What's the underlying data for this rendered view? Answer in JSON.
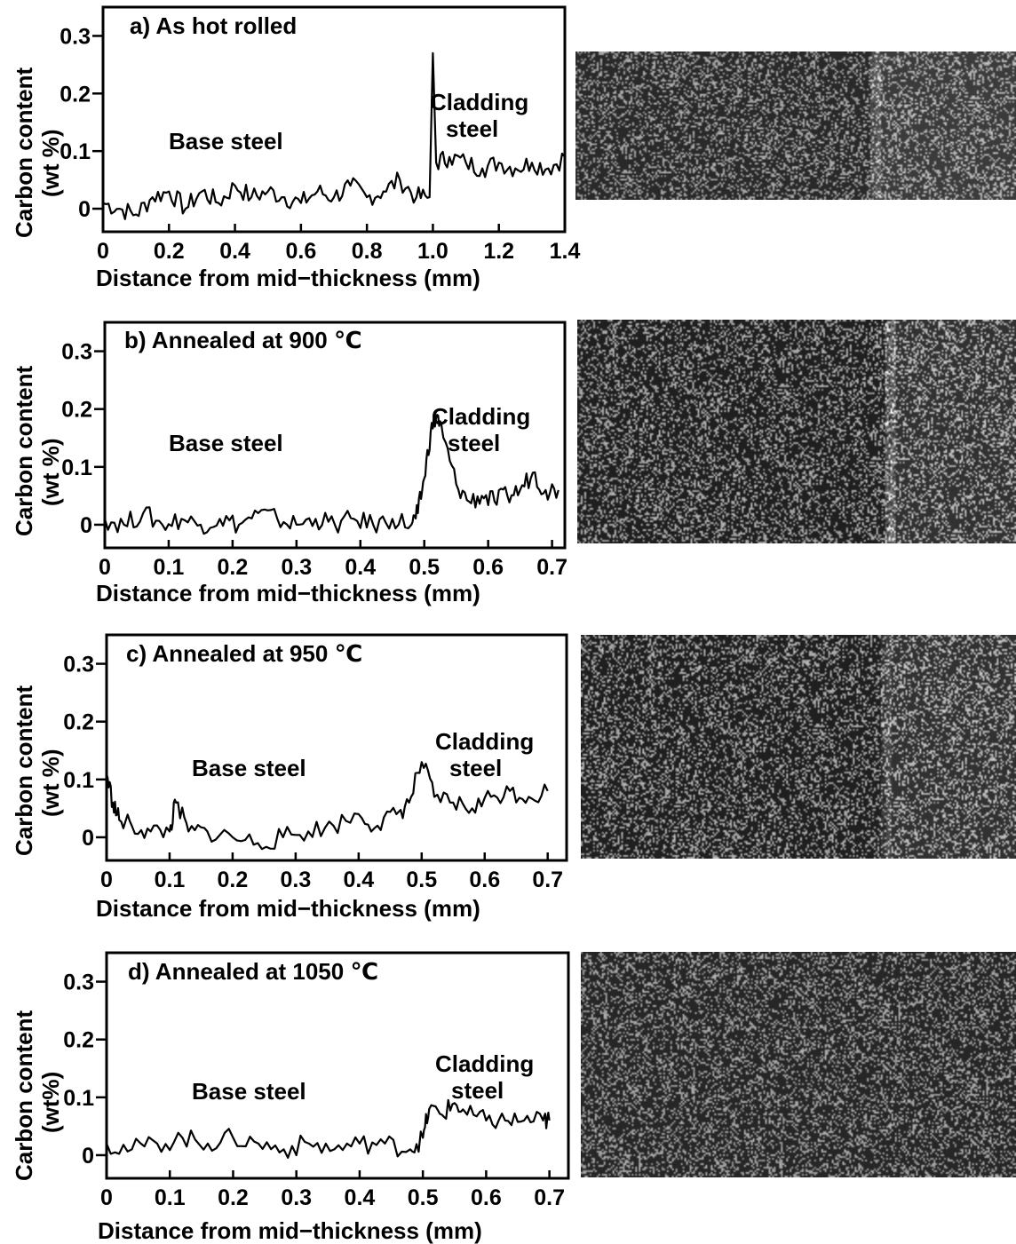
{
  "chart_data": [
    {
      "type": "line",
      "title": "a)  As hot rolled",
      "xlabel": "Distance  from mid−thickness (mm)",
      "ylabel": "Carbon content",
      "ylabel_unit": "(wt %)",
      "xlim": [
        0,
        1.4
      ],
      "ylim": [
        -0.04,
        0.35
      ],
      "x_ticks": [
        0,
        0.2,
        0.4,
        0.6,
        0.8,
        1.0,
        1.2,
        1.4
      ],
      "x_tick_labels": [
        "0",
        "0.2",
        "0.4",
        "0.6",
        "0.8",
        "1.0",
        "1.2",
        "1.4"
      ],
      "y_ticks": [
        0,
        0.1,
        0.2,
        0.3
      ],
      "y_tick_labels": [
        "0",
        "0.1",
        "0.2",
        "0.3"
      ],
      "grid": false,
      "annotations": {
        "base": "Base steel",
        "cladding_1": "Cladding",
        "cladding_2": "steel"
      },
      "series": [
        {
          "x": [
            0,
            0.05,
            0.1,
            0.15,
            0.2,
            0.25,
            0.3,
            0.35,
            0.4,
            0.45,
            0.5,
            0.55,
            0.6,
            0.65,
            0.7,
            0.75,
            0.8,
            0.85,
            0.9,
            0.95,
            0.99,
            1.0,
            1.01,
            1.05,
            1.1,
            1.15,
            1.2,
            1.25,
            1.3,
            1.35,
            1.4
          ],
          "values": [
            0.01,
            0.0,
            -0.01,
            0.02,
            0.03,
            0.0,
            0.03,
            0.01,
            0.04,
            0.02,
            0.03,
            0.02,
            0.01,
            0.03,
            0.02,
            0.04,
            0.02,
            0.03,
            0.05,
            0.02,
            0.02,
            0.27,
            0.08,
            0.09,
            0.08,
            0.07,
            0.08,
            0.07,
            0.08,
            0.07,
            0.09
          ]
        }
      ]
    },
    {
      "type": "line",
      "title": "b)  Annealed at  900 ℃",
      "xlabel": "Distance  from mid−thickness (mm)",
      "ylabel": "Carbon content",
      "ylabel_unit": "(wt %)",
      "xlim": [
        0,
        0.72
      ],
      "ylim": [
        -0.04,
        0.35
      ],
      "x_ticks": [
        0,
        0.1,
        0.2,
        0.3,
        0.4,
        0.5,
        0.6,
        0.7
      ],
      "x_tick_labels": [
        "0",
        "0.1",
        "0.2",
        "0.3",
        "0.4",
        "0.5",
        "0.6",
        "0.7"
      ],
      "y_ticks": [
        0,
        0.1,
        0.2,
        0.3
      ],
      "y_tick_labels": [
        "0",
        "0.1",
        "0.2",
        "0.3"
      ],
      "grid": false,
      "annotations": {
        "base": "Base steel",
        "cladding_1": "Cladding",
        "cladding_2": "steel"
      },
      "series": [
        {
          "x": [
            0,
            0.03,
            0.06,
            0.09,
            0.12,
            0.15,
            0.18,
            0.21,
            0.24,
            0.27,
            0.3,
            0.33,
            0.36,
            0.39,
            0.42,
            0.45,
            0.48,
            0.49,
            0.5,
            0.51,
            0.52,
            0.53,
            0.55,
            0.57,
            0.59,
            0.61,
            0.63,
            0.65,
            0.67,
            0.69,
            0.71
          ],
          "values": [
            0.01,
            0.0,
            0.02,
            0.0,
            0.01,
            0.0,
            0.01,
            0.0,
            0.02,
            0.01,
            0.0,
            0.01,
            0.0,
            0.01,
            0.0,
            0.01,
            0.0,
            0.02,
            0.08,
            0.16,
            0.19,
            0.15,
            0.07,
            0.04,
            0.05,
            0.04,
            0.05,
            0.06,
            0.09,
            0.06,
            0.06
          ]
        }
      ]
    },
    {
      "type": "line",
      "title": "c)  Annealed at  950 ℃",
      "xlabel": "Distance  from mid−thickness (mm)",
      "ylabel": "Carbon content",
      "ylabel_unit": "(wt %)",
      "xlim": [
        0,
        0.73
      ],
      "ylim": [
        -0.04,
        0.35
      ],
      "x_ticks": [
        0,
        0.1,
        0.2,
        0.3,
        0.4,
        0.5,
        0.6,
        0.7
      ],
      "x_tick_labels": [
        "0",
        "0.1",
        "0.2",
        "0.3",
        "0.4",
        "0.5",
        "0.6",
        "0.7"
      ],
      "y_ticks": [
        0,
        0.1,
        0.2,
        0.3
      ],
      "y_tick_labels": [
        "0",
        "0.1",
        "0.2",
        "0.3"
      ],
      "grid": false,
      "annotations": {
        "base": "Base steel",
        "cladding_1": "Cladding",
        "cladding_2": "steel"
      },
      "series": [
        {
          "x": [
            0,
            0.01,
            0.02,
            0.04,
            0.07,
            0.1,
            0.11,
            0.13,
            0.16,
            0.2,
            0.24,
            0.28,
            0.32,
            0.36,
            0.4,
            0.43,
            0.46,
            0.48,
            0.5,
            0.52,
            0.55,
            0.58,
            0.61,
            0.64,
            0.67,
            0.7
          ],
          "values": [
            0.11,
            0.06,
            0.03,
            0.02,
            0.01,
            0.01,
            0.06,
            0.01,
            0.01,
            0.0,
            -0.01,
            0.0,
            0.01,
            0.02,
            0.04,
            0.02,
            0.04,
            0.06,
            0.13,
            0.07,
            0.06,
            0.05,
            0.07,
            0.08,
            0.07,
            0.08
          ]
        }
      ]
    },
    {
      "type": "line",
      "title": "d)  Annealed at  1050 ℃",
      "xlabel": "Distance  from mid−thickness (mm)",
      "ylabel": "Carbon content",
      "ylabel_unit": "(wt%)",
      "xlim": [
        0,
        0.73
      ],
      "ylim": [
        -0.04,
        0.35
      ],
      "x_ticks": [
        0,
        0.1,
        0.2,
        0.3,
        0.4,
        0.5,
        0.6,
        0.7
      ],
      "x_tick_labels": [
        "0",
        "0.1",
        "0.2",
        "0.3",
        "0.4",
        "0.5",
        "0.6",
        "0.7"
      ],
      "y_ticks": [
        0,
        0.1,
        0.2,
        0.3
      ],
      "y_tick_labels": [
        "0",
        "0.1",
        "0.2",
        "0.3"
      ],
      "grid": false,
      "annotations": {
        "base": "Base steel",
        "cladding_1": "Cladding",
        "cladding_2": "steel"
      },
      "series": [
        {
          "x": [
            0,
            0.04,
            0.08,
            0.12,
            0.16,
            0.2,
            0.24,
            0.28,
            0.32,
            0.36,
            0.4,
            0.44,
            0.48,
            0.5,
            0.51,
            0.53,
            0.55,
            0.57,
            0.6,
            0.63,
            0.66,
            0.69,
            0.7
          ],
          "values": [
            0.02,
            0.01,
            0.02,
            0.03,
            0.02,
            0.03,
            0.02,
            0.01,
            0.02,
            0.01,
            0.02,
            0.02,
            0.01,
            0.03,
            0.08,
            0.07,
            0.09,
            0.07,
            0.06,
            0.06,
            0.06,
            0.06,
            0.06
          ]
        }
      ]
    }
  ],
  "micrographs": [
    {
      "seed": 11,
      "base_brightness": 0.16,
      "noise": 0.9,
      "band_at": 0.68,
      "band_strength": 0.55
    },
    {
      "seed": 23,
      "base_brightness": 0.12,
      "noise": 1.0,
      "band_at": 0.71,
      "band_strength": 0.85
    },
    {
      "seed": 37,
      "base_brightness": 0.12,
      "noise": 1.0,
      "band_at": 0.7,
      "band_strength": 0.35
    },
    {
      "seed": 51,
      "base_brightness": 0.15,
      "noise": 0.9,
      "band_at": 0.0,
      "band_strength": 0.0
    }
  ]
}
